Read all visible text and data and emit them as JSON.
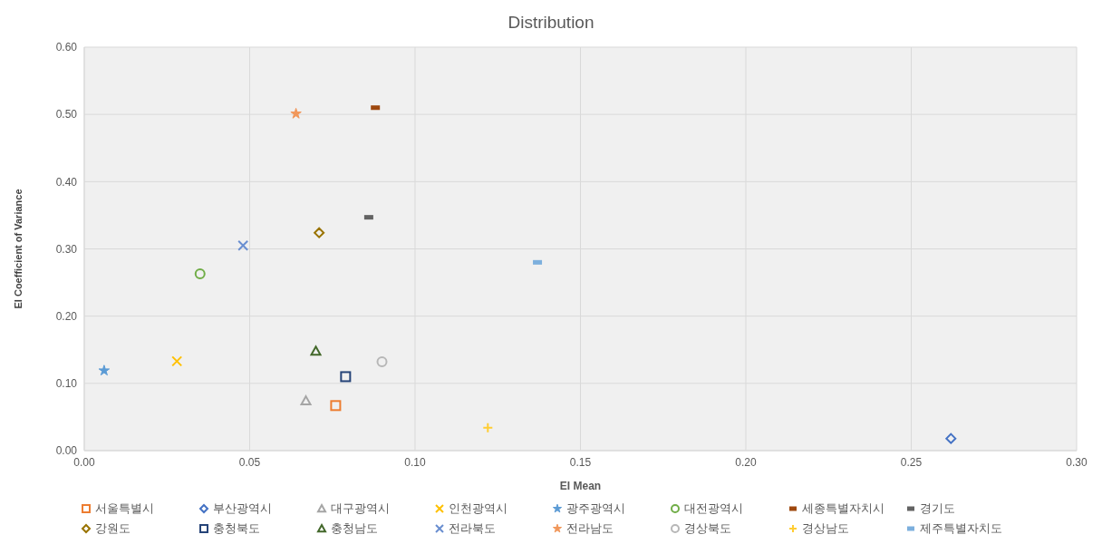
{
  "chart_data": {
    "type": "scatter",
    "title": "Distribution",
    "xlabel": "EI Mean",
    "ylabel": "EI Coefficient of Variance",
    "xlim": [
      0,
      0.3
    ],
    "xticks": [
      {
        "value": 0,
        "label": "0.00"
      },
      {
        "value": 0.05,
        "label": "0.05"
      },
      {
        "value": 0.1,
        "label": "0.10"
      },
      {
        "value": 0.15,
        "label": "0.15"
      },
      {
        "value": 0.2,
        "label": "0.20"
      },
      {
        "value": 0.25,
        "label": "0.25"
      },
      {
        "value": 0.3,
        "label": "0.30"
      }
    ],
    "ylim": [
      0,
      0.6
    ],
    "yticks": [
      {
        "value": 0,
        "label": "0.00"
      },
      {
        "value": 0.1,
        "label": "0.10"
      },
      {
        "value": 0.2,
        "label": "0.20"
      },
      {
        "value": 0.3,
        "label": "0.30"
      },
      {
        "value": 0.4,
        "label": "0.40"
      },
      {
        "value": 0.5,
        "label": "0.50"
      },
      {
        "value": 0.6,
        "label": "0.60"
      }
    ],
    "grid": true,
    "legend": "bottom",
    "series": [
      {
        "name": "서울특별시",
        "color": "#ed7d31",
        "marker": "square",
        "x": [
          0.076
        ],
        "values": [
          0.067
        ]
      },
      {
        "name": "부산광역시",
        "color": "#4472c4",
        "marker": "diamond",
        "x": [
          0.262
        ],
        "values": [
          0.018
        ]
      },
      {
        "name": "대구광역시",
        "color": "#a5a5a5",
        "marker": "triangle",
        "x": [
          0.067
        ],
        "values": [
          0.074
        ]
      },
      {
        "name": "인천광역시",
        "color": "#ffc000",
        "marker": "cross",
        "x": [
          0.028
        ],
        "values": [
          0.133
        ]
      },
      {
        "name": "광주광역시",
        "color": "#5b9bd5",
        "marker": "star",
        "x": [
          0.006
        ],
        "values": [
          0.119
        ]
      },
      {
        "name": "대전광역시",
        "color": "#70ad47",
        "marker": "circle",
        "x": [
          0.035
        ],
        "values": [
          0.263
        ]
      },
      {
        "name": "세종특별자치시",
        "color": "#9e480e",
        "x": [
          0.088
        ],
        "values": [
          0.51
        ]
      },
      {
        "name": "경기도",
        "color": "#636363",
        "x": [
          0.086
        ],
        "values": [
          0.347
        ]
      },
      {
        "name": "강원도",
        "color": "#997300",
        "marker": "diamond",
        "x": [
          0.071
        ],
        "values": [
          0.324
        ]
      },
      {
        "name": "충청북도",
        "color": "#264478",
        "marker": "square",
        "x": [
          0.079
        ],
        "values": [
          0.11
        ]
      },
      {
        "name": "충청남도",
        "color": "#43682b",
        "marker": "triangle",
        "x": [
          0.07
        ],
        "values": [
          0.148
        ]
      },
      {
        "name": "전라북도",
        "color": "#698ed0",
        "marker": "cross",
        "x": [
          0.048
        ],
        "values": [
          0.305
        ]
      },
      {
        "name": "전라남도",
        "color": "#f1975a",
        "marker": "star",
        "x": [
          0.064
        ],
        "values": [
          0.501
        ]
      },
      {
        "name": "경상북도",
        "color": "#b7b7b7",
        "marker": "circle",
        "x": [
          0.09
        ],
        "values": [
          0.132
        ]
      },
      {
        "name": "경상남도",
        "color": "#ffcd33",
        "marker": "plus",
        "x": [
          0.122
        ],
        "values": [
          0.034
        ]
      },
      {
        "name": "제주특별자치도",
        "color": "#7cafdd",
        "x": [
          0.137
        ],
        "values": [
          0.28
        ]
      }
    ]
  }
}
